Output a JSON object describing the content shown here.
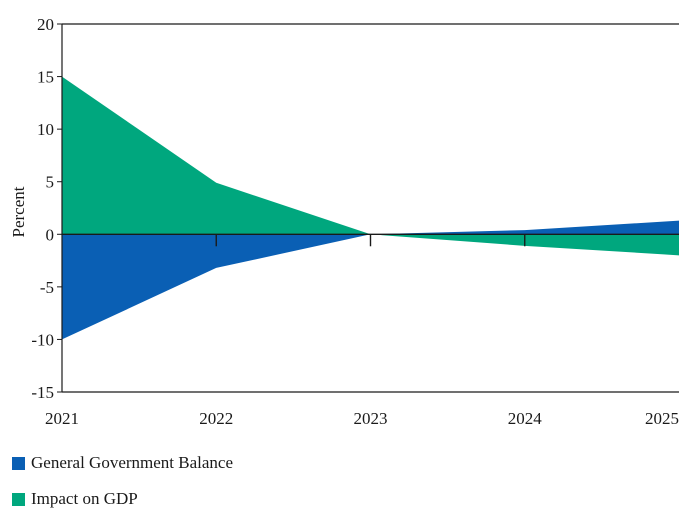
{
  "chart_data": {
    "type": "area",
    "title": "",
    "xlabel": "",
    "ylabel": "Percent",
    "x": [
      "2021",
      "2022",
      "2023",
      "2024",
      "2025"
    ],
    "ylim": [
      -15,
      20
    ],
    "yticks": [
      -15,
      -10,
      -5,
      0,
      5,
      10,
      15,
      20
    ],
    "grid": false,
    "legend_position": "bottom-left",
    "series": [
      {
        "name": "General Government Balance",
        "color": "#0a5fb4",
        "values": [
          -10,
          -3.2,
          0,
          0.4,
          1.3
        ]
      },
      {
        "name": "Impact on GDP",
        "color": "#00a77e",
        "values": [
          15,
          4.9,
          0,
          -1.1,
          -2.0
        ]
      }
    ]
  }
}
